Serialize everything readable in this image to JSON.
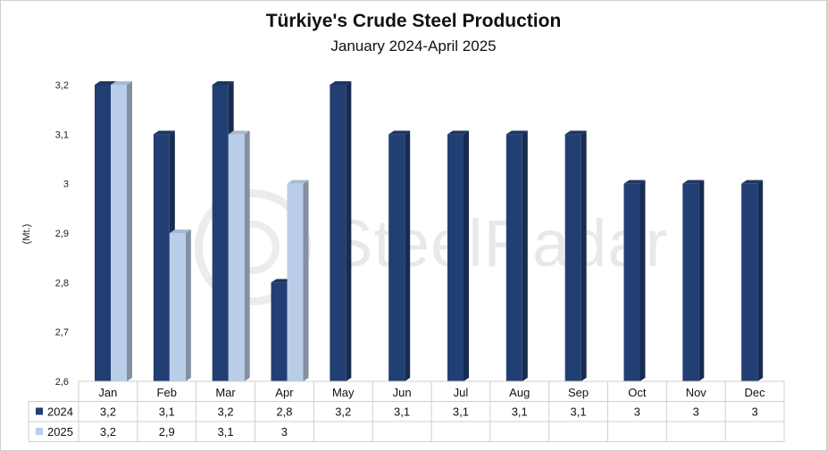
{
  "chart_data": {
    "type": "bar",
    "title": "Türkiye's Crude Steel Production",
    "subtitle": "January 2024-April 2025",
    "ylabel": "(Mt.)",
    "xlabel": "",
    "ylim": [
      2.6,
      3.25
    ],
    "yticks": [
      "2,6",
      "2,7",
      "2,8",
      "2,9",
      "3",
      "3,1",
      "3,2"
    ],
    "ytick_values": [
      2.6,
      2.7,
      2.8,
      2.9,
      3.0,
      3.1,
      3.2
    ],
    "categories": [
      "Jan",
      "Feb",
      "Mar",
      "Apr",
      "May",
      "Jun",
      "Jul",
      "Aug",
      "Sep",
      "Oct",
      "Nov",
      "Dec"
    ],
    "series": [
      {
        "name": "2024",
        "color": "#223f73",
        "values": [
          3.2,
          3.1,
          3.2,
          2.8,
          3.2,
          3.1,
          3.1,
          3.1,
          3.1,
          3.0,
          3.0,
          3.0
        ],
        "labels": [
          "3,2",
          "3,1",
          "3,2",
          "2,8",
          "3,2",
          "3,1",
          "3,1",
          "3,1",
          "3,1",
          "3",
          "3",
          "3"
        ]
      },
      {
        "name": "2025",
        "color": "#b9cde8",
        "values": [
          3.2,
          2.9,
          3.1,
          3.0,
          null,
          null,
          null,
          null,
          null,
          null,
          null,
          null
        ],
        "labels": [
          "3,2",
          "2,9",
          "3,1",
          "3",
          "",
          "",
          "",
          "",
          "",
          "",
          "",
          ""
        ]
      }
    ],
    "grid": false,
    "legend": "data-table"
  },
  "watermark": {
    "text": "SteelRadar"
  }
}
